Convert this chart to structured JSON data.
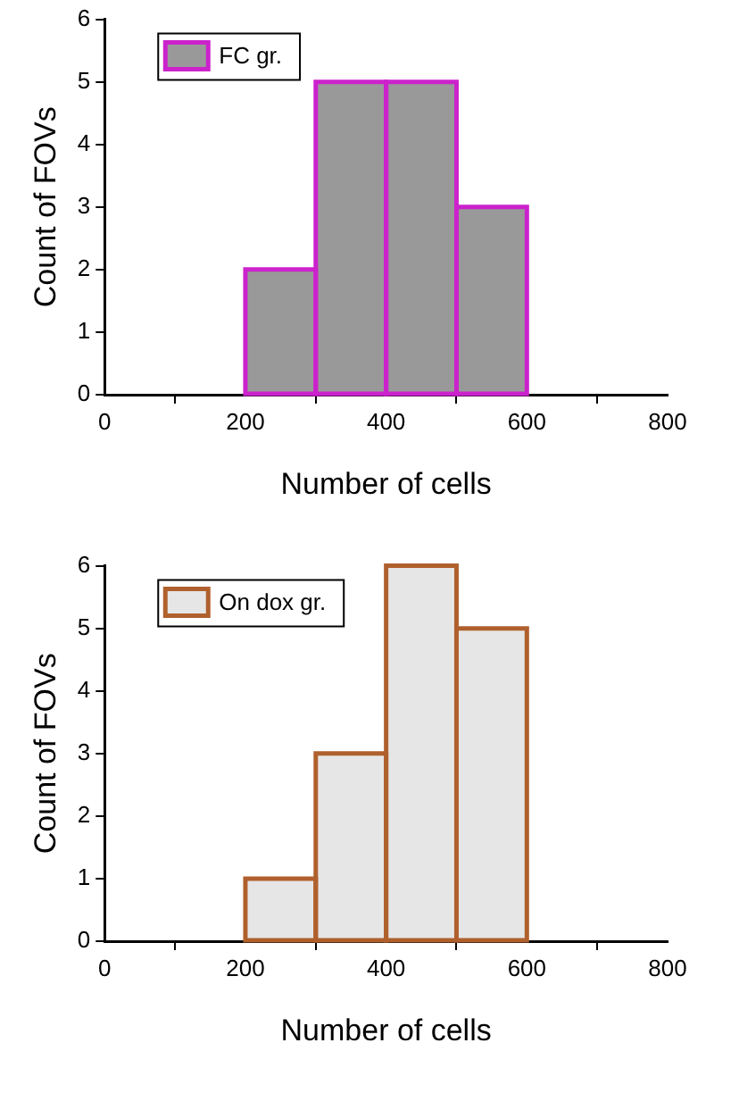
{
  "chart_data": [
    {
      "type": "histogram",
      "xlabel": "Number of cells",
      "ylabel": "Count of FOVs",
      "bins": [
        200,
        300,
        400,
        500,
        600
      ],
      "series": [
        {
          "name": "FC gr.",
          "color": "#999999",
          "values": [
            2,
            5,
            5,
            3
          ]
        }
      ],
      "xlim": [
        0,
        800
      ],
      "xticks": [
        0,
        200,
        400,
        600,
        800
      ],
      "ylim": [
        0,
        6
      ],
      "yticks": [
        0,
        1,
        2,
        3,
        4,
        5,
        6
      ],
      "grid": false,
      "legend": "top left"
    },
    {
      "type": "histogram",
      "xlabel": "Number of cells",
      "ylabel": "Count of FOVs",
      "bins": [
        200,
        300,
        400,
        500,
        600
      ],
      "series": [
        {
          "name": "On dox gr.",
          "color": "#e6e6e6",
          "values": [
            1,
            3,
            6,
            5
          ]
        }
      ],
      "xlim": [
        0,
        800
      ],
      "xticks": [
        0,
        200,
        400,
        600,
        800
      ],
      "ylim": [
        0,
        6
      ],
      "yticks": [
        0,
        1,
        2,
        3,
        4,
        5,
        6
      ],
      "grid": false,
      "legend": "top left"
    }
  ]
}
